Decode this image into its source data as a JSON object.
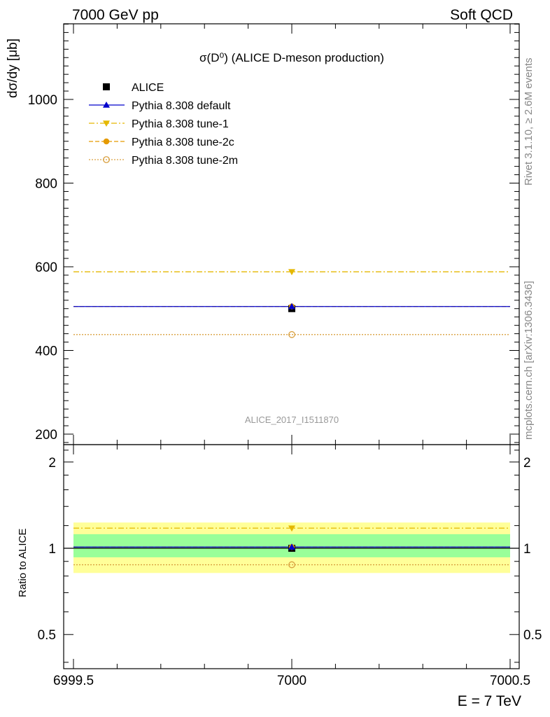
{
  "header": {
    "left": "7000 GeV pp",
    "right": "Soft QCD"
  },
  "side_labels": {
    "rivet": "Rivet 3.1.10, ≥ 2.6M events",
    "mcplots": "mcplots.cern.ch [arXiv:1306.3436]"
  },
  "chart_data": [
    {
      "type": "line",
      "title": "σ(D⁰) (ALICE D-meson production)",
      "analysis_label": "ALICE_2017_I1511870",
      "ylabel": "dσ/dy [μb]",
      "xlim": [
        6999.5,
        7000.5
      ],
      "ylim": [
        180,
        1180
      ],
      "y_ticks": [
        200,
        400,
        600,
        800,
        1000
      ],
      "x": [
        7000
      ],
      "legend_position": "top-left",
      "data": {
        "name": "ALICE",
        "x": 7000,
        "y": 500,
        "color": "#000000",
        "marker": "square"
      },
      "series": [
        {
          "name": "Pythia 8.308 default",
          "y": 505,
          "color": "#0000cc",
          "marker": "triangle-up",
          "linestyle": "solid"
        },
        {
          "name": "Pythia 8.308 tune-1",
          "y": 588,
          "color": "#e5b800",
          "marker": "triangle-down",
          "linestyle": "dashdot"
        },
        {
          "name": "Pythia 8.308 tune-2c",
          "y": 505,
          "color": "#e59a00",
          "marker": "circle",
          "linestyle": "dashed"
        },
        {
          "name": "Pythia 8.308 tune-2m",
          "y": 438,
          "color": "#d9a040",
          "marker": "open-circle",
          "linestyle": "dotted"
        }
      ]
    },
    {
      "type": "line",
      "ylabel": "Ratio to ALICE",
      "xlabel": "E = 7 TeV",
      "xlim": [
        6999.5,
        7000.5
      ],
      "ylim": [
        0.38,
        2.3
      ],
      "log_y": true,
      "y_ticks": [
        0.5,
        1,
        2
      ],
      "y_tick_labels": [
        "0.5",
        "1",
        "2"
      ],
      "x_ticks": [
        6999.5,
        7000,
        7000.5
      ],
      "x_tick_labels": [
        "6999.5",
        "7000",
        "7000.5"
      ],
      "bands": [
        {
          "low": 0.82,
          "high": 1.23,
          "color": "#ffff99"
        },
        {
          "low": 0.93,
          "high": 1.12,
          "color": "#99ff99"
        }
      ],
      "reference": 1.0,
      "series": [
        {
          "name": "Pythia 8.308 default",
          "y": 1.01
        },
        {
          "name": "Pythia 8.308 tune-1",
          "y": 1.176
        },
        {
          "name": "Pythia 8.308 tune-2c",
          "y": 1.01
        },
        {
          "name": "Pythia 8.308 tune-2m",
          "y": 0.876
        }
      ]
    }
  ]
}
